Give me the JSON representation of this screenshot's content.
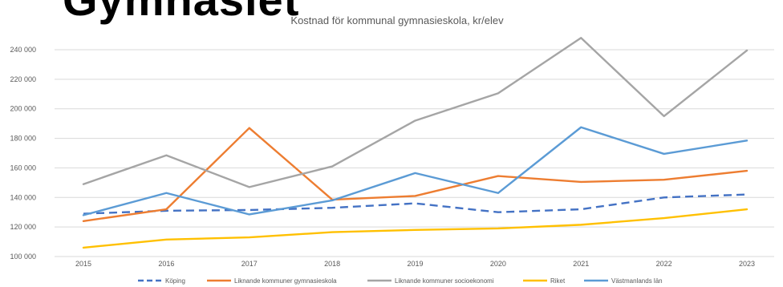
{
  "slide_title": "Gymnasiet",
  "chart_data": {
    "type": "line",
    "title": "Kostnad för kommunal gymnasieskola, kr/elev",
    "xlabel": "",
    "ylabel": "",
    "categories": [
      "2015",
      "2016",
      "2017",
      "2018",
      "2019",
      "2020",
      "2021",
      "2022",
      "2023"
    ],
    "ylim": [
      100000,
      240000
    ],
    "yticks": [
      100000,
      120000,
      140000,
      160000,
      180000,
      200000,
      220000,
      240000
    ],
    "ytick_labels": [
      "100 000",
      "120 000",
      "140 000",
      "160 000",
      "180 000",
      "200 000",
      "220 000",
      "240 000"
    ],
    "grid": true,
    "legend_position": "bottom",
    "series": [
      {
        "name": "Köping",
        "color": "#4472C4",
        "dashed": true,
        "values": [
          129000,
          131000,
          131500,
          133000,
          136000,
          130000,
          132000,
          140000,
          142000
        ]
      },
      {
        "name": "Liknande kommuner gymnasieskola",
        "color": "#ED7D31",
        "dashed": false,
        "values": [
          124000,
          132000,
          187000,
          138500,
          141000,
          154500,
          150500,
          152000,
          158000
        ]
      },
      {
        "name": "Liknande kommuner socioekonomi",
        "color": "#A5A5A5",
        "dashed": false,
        "values": [
          149000,
          168500,
          147000,
          161000,
          192000,
          210500,
          248000,
          195000,
          239500
        ]
      },
      {
        "name": "Riket",
        "color": "#FFC000",
        "dashed": false,
        "values": [
          106000,
          111500,
          113000,
          116500,
          118000,
          119000,
          121500,
          126000,
          132000
        ]
      },
      {
        "name": "Västmanlands län",
        "color": "#5B9BD5",
        "dashed": false,
        "values": [
          128000,
          143000,
          128500,
          138000,
          156500,
          143000,
          187500,
          169500,
          178500
        ]
      }
    ]
  }
}
